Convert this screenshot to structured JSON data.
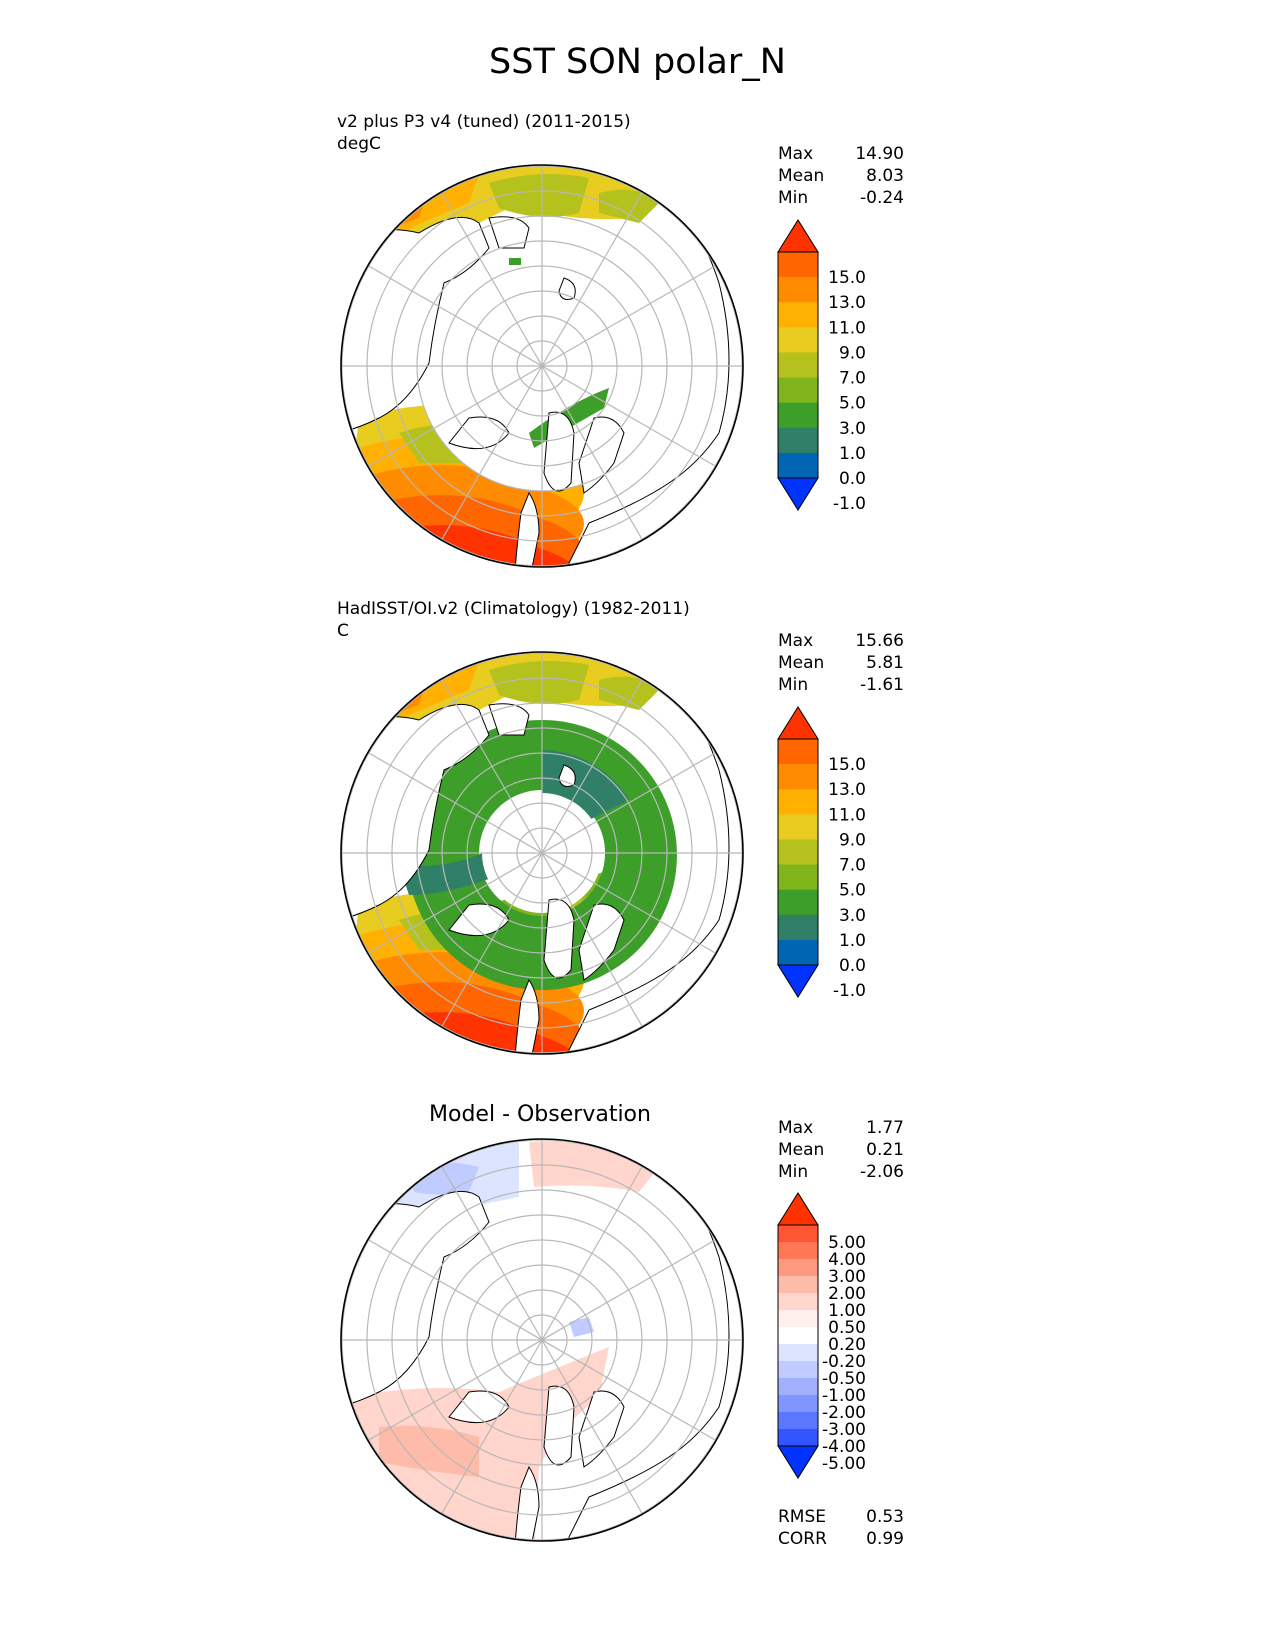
{
  "title": "SST SON polar_N",
  "panels": [
    {
      "id": "test",
      "title_line1": "v2 plus P3 v4 (tuned) (2011-2015)",
      "title_line2": "degC",
      "stats": [
        {
          "label": "Max",
          "value": "14.90"
        },
        {
          "label": "Mean",
          "value": "8.03"
        },
        {
          "label": "Min",
          "value": "-0.24"
        }
      ],
      "colorbar": {
        "ticks": [
          "15.0",
          "13.0",
          "11.0",
          "9.0",
          "7.0",
          "5.0",
          "3.0",
          "1.0",
          "0.0",
          "-1.0"
        ],
        "colors_top_to_bottom": [
          "#ff3300",
          "#ff6600",
          "#ff8c00",
          "#ffb000",
          "#e8cc20",
          "#b5c21e",
          "#7fb51a",
          "#3d9e2a",
          "#2f8066",
          "#0066b3",
          "#0033ff"
        ]
      }
    },
    {
      "id": "reference",
      "title_line1": "HadISST/OI.v2 (Climatology) (1982-2011)",
      "title_line2": "C",
      "stats": [
        {
          "label": "Max",
          "value": "15.66"
        },
        {
          "label": "Mean",
          "value": "5.81"
        },
        {
          "label": "Min",
          "value": "-1.61"
        }
      ],
      "colorbar": {
        "ticks": [
          "15.0",
          "13.0",
          "11.0",
          "9.0",
          "7.0",
          "5.0",
          "3.0",
          "1.0",
          "0.0",
          "-1.0"
        ],
        "colors_top_to_bottom": [
          "#ff3300",
          "#ff6600",
          "#ff8c00",
          "#ffb000",
          "#e8cc20",
          "#b5c21e",
          "#7fb51a",
          "#3d9e2a",
          "#2f8066",
          "#0066b3",
          "#0033ff"
        ]
      }
    },
    {
      "id": "difference",
      "title": "Model - Observation",
      "stats": [
        {
          "label": "Max",
          "value": "1.77"
        },
        {
          "label": "Mean",
          "value": "0.21"
        },
        {
          "label": "Min",
          "value": "-2.06"
        }
      ],
      "colorbar": {
        "ticks": [
          "5.00",
          "4.00",
          "3.00",
          "2.00",
          "1.00",
          "0.50",
          "0.20",
          "-0.20",
          "-0.50",
          "-1.00",
          "-2.00",
          "-3.00",
          "-4.00",
          "-5.00"
        ],
        "colors_top_to_bottom": [
          "#ff3300",
          "#ff5533",
          "#ff7755",
          "#ff9980",
          "#ffbbaa",
          "#ffd5cc",
          "#fff0ee",
          "#ffffff",
          "#dde4ff",
          "#c0ccff",
          "#a0b0ff",
          "#7f95ff",
          "#5c77ff",
          "#3355ff",
          "#0033ff"
        ]
      },
      "summary": [
        {
          "label": "RMSE",
          "value": "0.53"
        },
        {
          "label": "CORR",
          "value": "0.99"
        }
      ]
    }
  ]
}
